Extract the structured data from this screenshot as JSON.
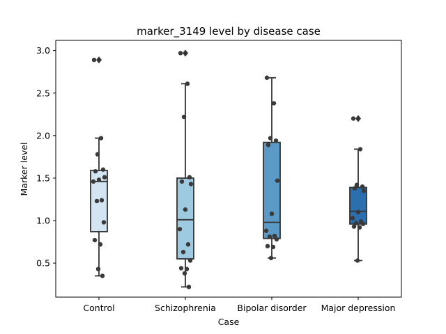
{
  "chart_data": {
    "type": "box",
    "title": "marker_3149 level by disease case",
    "xlabel": "Case",
    "ylabel": "Marker level",
    "ylim": [
      0.1,
      3.12
    ],
    "yticks": [
      "0.5",
      "1.0",
      "1.5",
      "2.0",
      "2.5",
      "3.0"
    ],
    "grid": false,
    "categories": [
      "Control",
      "Schizophrenia",
      "Bipolar disorder",
      "Major depression"
    ],
    "colors": [
      "#d3e4f3",
      "#9ecae1",
      "#5b9ac7",
      "#2b6fae"
    ],
    "boxes": [
      {
        "name": "Control",
        "whisker_low": 0.35,
        "q1": 0.87,
        "median": 1.46,
        "q3": 1.59,
        "whisker_high": 1.97,
        "outliers": [
          2.89
        ]
      },
      {
        "name": "Schizophrenia",
        "whisker_low": 0.22,
        "q1": 0.55,
        "median": 1.01,
        "q3": 1.5,
        "whisker_high": 2.61,
        "outliers": [
          2.97
        ]
      },
      {
        "name": "Bipolar disorder",
        "whisker_low": 0.56,
        "q1": 0.79,
        "median": 0.98,
        "q3": 1.92,
        "whisker_high": 2.68,
        "outliers": []
      },
      {
        "name": "Major depression",
        "whisker_low": 0.53,
        "q1": 0.96,
        "median": 1.11,
        "q3": 1.39,
        "whisker_high": 1.84,
        "outliers": [
          2.2
        ]
      }
    ],
    "points": [
      {
        "category": "Control",
        "values": [
          2.89,
          1.97,
          1.78,
          1.6,
          1.58,
          1.51,
          1.48,
          1.46,
          1.24,
          1.23,
          0.98,
          0.77,
          0.72,
          0.43,
          0.35
        ]
      },
      {
        "category": "Schizophrenia",
        "values": [
          2.97,
          2.61,
          2.22,
          1.51,
          1.46,
          1.43,
          1.13,
          0.9,
          0.72,
          0.63,
          0.53,
          0.44,
          0.43,
          0.38,
          0.22
        ]
      },
      {
        "category": "Bipolar disorder",
        "values": [
          2.68,
          2.38,
          1.97,
          1.94,
          1.89,
          1.47,
          1.08,
          0.88,
          0.82,
          0.81,
          0.78,
          0.7,
          0.69,
          0.56
        ]
      },
      {
        "category": "Major depression",
        "values": [
          2.2,
          1.84,
          1.42,
          1.4,
          1.38,
          1.35,
          1.1,
          1.03,
          0.99,
          0.97,
          0.96,
          0.93,
          0.92,
          0.53
        ]
      }
    ],
    "point_color": "#3a3a3a"
  }
}
